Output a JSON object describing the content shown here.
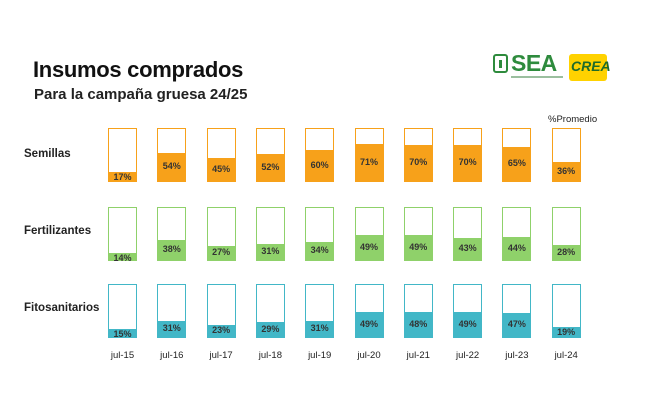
{
  "header": {
    "title": "Insumos comprados",
    "subtitle": "Para la campaña gruesa 24/25",
    "promedio_label": "%Promedio"
  },
  "logos": {
    "sea": "SEA",
    "crea": "CREA"
  },
  "colors": {
    "Semillas": "#f7a11a",
    "Fertilizantes": "#8fd16a",
    "Fitosanitarios": "#42b7c7"
  },
  "chart_data": {
    "type": "bar",
    "categories": [
      "jul-15",
      "jul-16",
      "jul-17",
      "jul-18",
      "jul-19",
      "jul-20",
      "jul-21",
      "jul-22",
      "jul-23",
      "jul-24"
    ],
    "series": [
      {
        "name": "Semillas",
        "values": [
          17,
          54,
          45,
          52,
          60,
          71,
          70,
          70,
          65,
          36
        ]
      },
      {
        "name": "Fertilizantes",
        "values": [
          14,
          38,
          27,
          31,
          34,
          49,
          49,
          43,
          44,
          28
        ]
      },
      {
        "name": "Fitosanitarios",
        "values": [
          15,
          31,
          23,
          29,
          31,
          49,
          48,
          49,
          47,
          19
        ]
      }
    ],
    "ylim": [
      0,
      100
    ],
    "unit": "%",
    "title": "Insumos comprados",
    "subtitle": "Para la campaña gruesa 24/25"
  }
}
